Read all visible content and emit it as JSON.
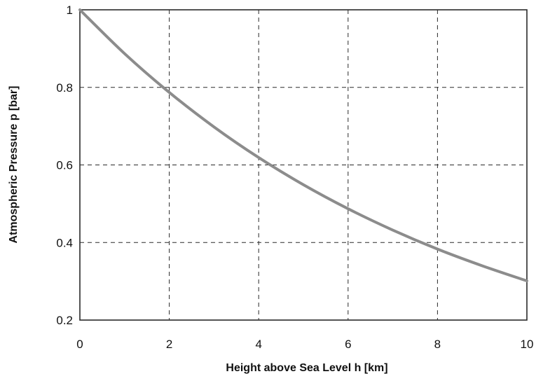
{
  "chart_data": {
    "type": "line",
    "xlabel": "Height above Sea Level h [km]",
    "ylabel": "Atmospheric Pressure p [bar]",
    "xlim": [
      0,
      10
    ],
    "ylim": [
      0.2,
      1
    ],
    "x_ticks": [
      "0",
      "2",
      "4",
      "6",
      "8",
      "10"
    ],
    "y_ticks": [
      "0.2",
      "0.4",
      "0.6",
      "0.8",
      "1"
    ],
    "grid": true,
    "series": [
      {
        "color": "#8c8c8c",
        "x": [
          0,
          1,
          2,
          3,
          4,
          5,
          6,
          7,
          8,
          9,
          10
        ],
        "y": [
          1.0,
          0.887,
          0.787,
          0.698,
          0.619,
          0.549,
          0.487,
          0.432,
          0.383,
          0.34,
          0.301
        ]
      }
    ]
  }
}
